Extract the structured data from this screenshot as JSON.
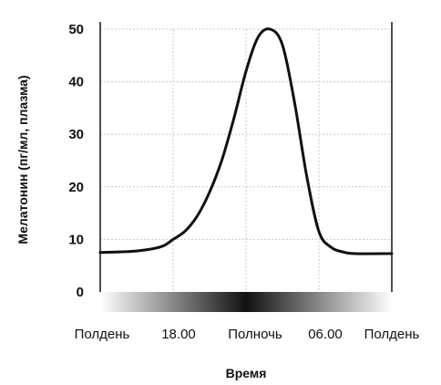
{
  "chart_data": {
    "type": "line",
    "title": "",
    "xlabel": "Время",
    "ylabel": "Мелатонин (пг/мл, плазма)",
    "ylim": [
      0,
      50
    ],
    "y_ticks": [
      0,
      10,
      20,
      30,
      40,
      50
    ],
    "x_ticks": [
      "Полдень",
      "18.00",
      "Полночь",
      "06.00",
      "Полдень"
    ],
    "grid": true,
    "legend": "none",
    "x_hours": [
      0,
      3,
      5,
      6,
      7,
      8,
      9,
      10,
      11,
      12,
      13,
      14,
      15,
      16,
      17,
      18,
      19,
      20,
      21,
      24
    ],
    "series": [
      {
        "values": [
          7.5,
          7.8,
          8.6,
          10,
          11.6,
          14.5,
          19,
          25,
          33,
          42,
          48.5,
          50,
          47,
          36,
          22,
          11.5,
          8.5,
          7.6,
          7.3,
          7.3
        ]
      }
    ],
    "day_night_gradient": {
      "light_color": "#ffffff",
      "dark_color": "#111111"
    },
    "colors": {
      "line": "#111111",
      "grid": "#c8c8c8",
      "axis": "#222222"
    }
  }
}
